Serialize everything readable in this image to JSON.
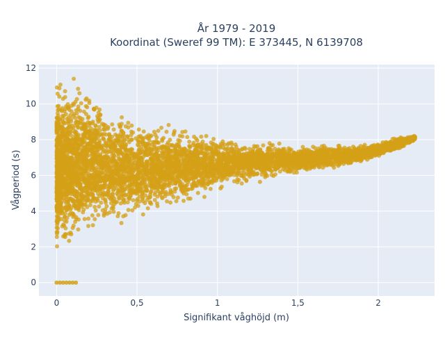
{
  "chart_data": {
    "type": "scatter",
    "title_line1": "År 1979 - 2019",
    "title_line2": "Koordinat (Sweref 99 TM): E 373445, N 6139708",
    "xlabel": "Signifikant våghöjd (m)",
    "ylabel": "Vågperiod (s)",
    "xlim": [
      -0.11,
      2.35
    ],
    "ylim": [
      -0.75,
      12.2
    ],
    "x_ticks": [
      {
        "value": 0,
        "label": "0"
      },
      {
        "value": 0.5,
        "label": "0,5"
      },
      {
        "value": 1,
        "label": "1"
      },
      {
        "value": 1.5,
        "label": "1,5"
      },
      {
        "value": 2,
        "label": "2"
      }
    ],
    "y_ticks": [
      {
        "value": 0,
        "label": "0"
      },
      {
        "value": 2,
        "label": "2"
      },
      {
        "value": 4,
        "label": "4"
      },
      {
        "value": 6,
        "label": "6"
      },
      {
        "value": 8,
        "label": "8"
      },
      {
        "value": 10,
        "label": "10"
      },
      {
        "value": 12,
        "label": "12"
      }
    ],
    "grid": true,
    "marker_color": "#d4a017",
    "background_color": "#e5ecf6",
    "distribution": {
      "description_points": "dense cloud; approximate envelope of values",
      "upper_envelope": [
        [
          0.0,
          11.6
        ],
        [
          0.1,
          11.6
        ],
        [
          0.2,
          11.4
        ],
        [
          0.3,
          10.0
        ],
        [
          0.4,
          9.7
        ],
        [
          0.5,
          9.4
        ],
        [
          0.7,
          8.9
        ],
        [
          0.9,
          8.6
        ],
        [
          1.1,
          8.3
        ],
        [
          1.3,
          8.1
        ],
        [
          1.5,
          7.9
        ],
        [
          1.7,
          7.9
        ],
        [
          1.9,
          7.8
        ],
        [
          2.1,
          8.2
        ],
        [
          2.23,
          8.3
        ]
      ],
      "lower_envelope": [
        [
          0.0,
          1.2
        ],
        [
          0.1,
          1.3
        ],
        [
          0.2,
          2.2
        ],
        [
          0.3,
          2.8
        ],
        [
          0.5,
          3.4
        ],
        [
          0.7,
          4.0
        ],
        [
          0.9,
          4.6
        ],
        [
          1.1,
          5.1
        ],
        [
          1.3,
          5.5
        ],
        [
          1.5,
          5.9
        ],
        [
          1.7,
          6.2
        ],
        [
          1.9,
          6.6
        ],
        [
          2.1,
          7.2
        ],
        [
          2.23,
          7.9
        ]
      ],
      "zero_period_points": [
        [
          0.0,
          0
        ],
        [
          0.02,
          0
        ],
        [
          0.04,
          0
        ],
        [
          0.06,
          0
        ],
        [
          0.08,
          0
        ],
        [
          0.1,
          0
        ],
        [
          0.12,
          0
        ]
      ]
    }
  }
}
